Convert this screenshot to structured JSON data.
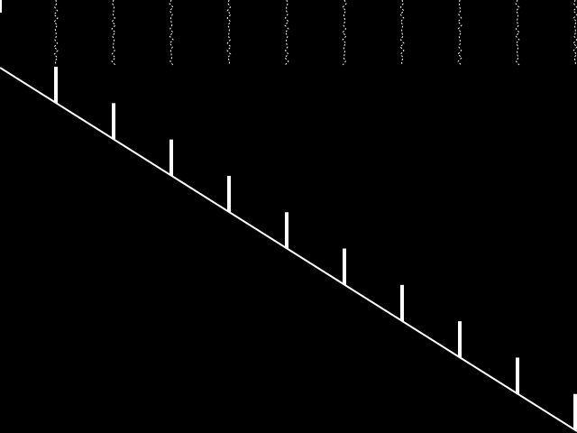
{
  "colors": {
    "background": "#000000",
    "foreground": "#ffffff"
  },
  "posts_count": 10
}
